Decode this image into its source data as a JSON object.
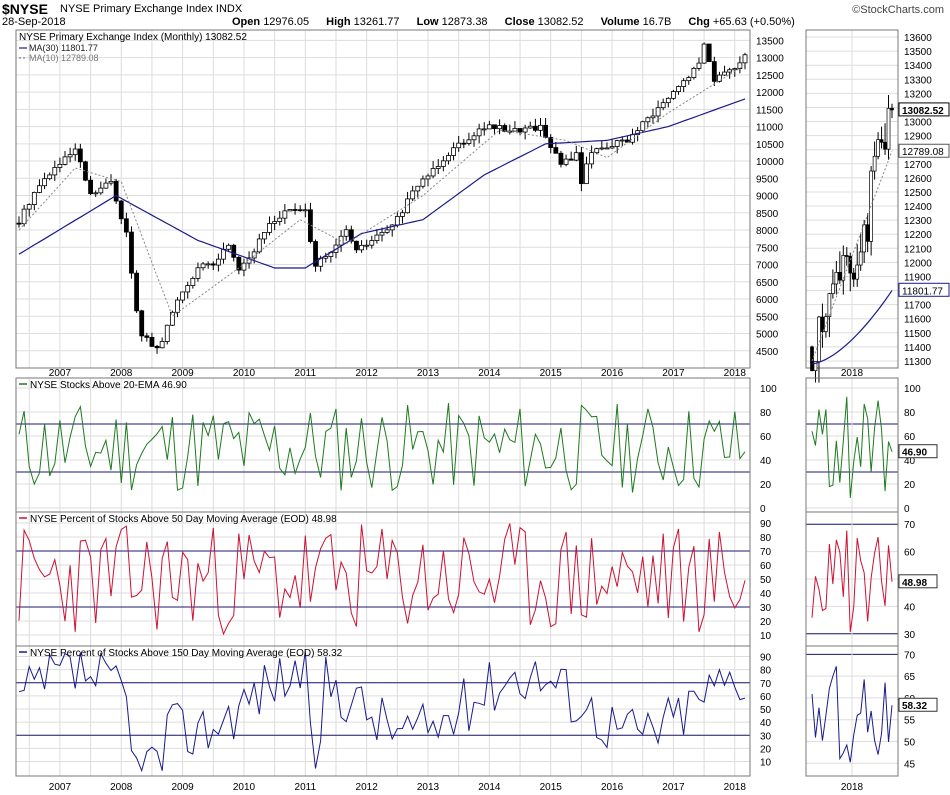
{
  "header": {
    "symbol": "$NYSE",
    "name": "NYSE Primary Exchange Index INDX",
    "brand": "©StockCharts.com",
    "date": "28-Sep-2018",
    "open_label": "Open",
    "open": "12976.05",
    "high_label": "High",
    "high": "13261.77",
    "low_label": "Low",
    "low": "12873.38",
    "close_label": "Close",
    "close": "13082.52",
    "volume_label": "Volume",
    "volume": "16.7B",
    "chg_label": "Chg",
    "chg": "+65.63 (+0.50%)"
  },
  "colors": {
    "candle": "#000000",
    "ma30": "#1a1a8c",
    "ma10": "#888888",
    "ema20_line": "#1e7a1e",
    "pct50_line": "#cc1133",
    "pct150_line": "#1a1a8c",
    "grid": "#dddddd",
    "reference_line": "#1a1a6e"
  },
  "chart_data": [
    {
      "type": "candlestick",
      "title": "NYSE Primary Exchange Index (Monthly) 13082.52",
      "legend": [
        {
          "label": "MA(30) 11801.77",
          "style": "solid",
          "color_key": "ma30"
        },
        {
          "label": "MA(10) 12789.08",
          "style": "dotted",
          "color_key": "ma10"
        }
      ],
      "x_tick_labels": [
        "2007",
        "2008",
        "2009",
        "2010",
        "2011",
        "2012",
        "2013",
        "2014",
        "2015",
        "2016",
        "2017",
        "2018"
      ],
      "y_tick_labels": [
        "4500",
        "5000",
        "5500",
        "6000",
        "6500",
        "7000",
        "7500",
        "8000",
        "8500",
        "9000",
        "9500",
        "10000",
        "10500",
        "11000",
        "11500",
        "12000",
        "12500",
        "13000",
        "13500"
      ],
      "ylim": [
        4000,
        13800
      ],
      "anchors": [
        [
          "2006-11",
          8200
        ],
        [
          "2006-12",
          8550
        ],
        [
          "2007-02",
          9100
        ],
        [
          "2007-05",
          9650
        ],
        [
          "2007-10",
          10300
        ],
        [
          "2007-11",
          9900
        ],
        [
          "2008-01",
          9000
        ],
        [
          "2008-05",
          9400
        ],
        [
          "2008-08",
          7900
        ],
        [
          "2008-10",
          5600
        ],
        [
          "2008-11",
          5000
        ],
        [
          "2009-02",
          4500
        ],
        [
          "2009-03",
          4800
        ],
        [
          "2009-06",
          6000
        ],
        [
          "2009-10",
          6900
        ],
        [
          "2010-01",
          7000
        ],
        [
          "2010-04",
          7600
        ],
        [
          "2010-06",
          6900
        ],
        [
          "2010-09",
          7400
        ],
        [
          "2010-12",
          8200
        ],
        [
          "2011-04",
          8600
        ],
        [
          "2011-07",
          8500
        ],
        [
          "2011-09",
          7000
        ],
        [
          "2011-12",
          7300
        ],
        [
          "2012-03",
          8000
        ],
        [
          "2012-05",
          7400
        ],
        [
          "2012-12",
          8100
        ],
        [
          "2013-05",
          9300
        ],
        [
          "2013-12",
          10400
        ],
        [
          "2014-06",
          11000
        ],
        [
          "2014-12",
          10900
        ],
        [
          "2015-05",
          11000
        ],
        [
          "2015-09",
          9900
        ],
        [
          "2015-12",
          10200
        ],
        [
          "2016-01",
          9400
        ],
        [
          "2016-03",
          10300
        ],
        [
          "2016-06",
          10450
        ],
        [
          "2016-10",
          10600
        ],
        [
          "2017-06",
          11800
        ],
        [
          "2017-12",
          12800
        ],
        [
          "2018-01",
          13400
        ],
        [
          "2018-03",
          12400
        ],
        [
          "2018-06",
          12600
        ],
        [
          "2018-09",
          13082.52
        ]
      ],
      "ma30_anchors": [
        [
          "2006-11",
          7300
        ],
        [
          "2008-06",
          9000
        ],
        [
          "2009-10",
          7700
        ],
        [
          "2011-01",
          6900
        ],
        [
          "2011-07",
          6900
        ],
        [
          "2012-06",
          7900
        ],
        [
          "2013-06",
          8300
        ],
        [
          "2014-06",
          9600
        ],
        [
          "2015-06",
          10500
        ],
        [
          "2016-06",
          10600
        ],
        [
          "2017-06",
          11000
        ],
        [
          "2018-09",
          11801.77
        ]
      ],
      "ma10_anchors": [
        [
          "2006-11",
          8000
        ],
        [
          "2007-10",
          9800
        ],
        [
          "2008-07",
          9400
        ],
        [
          "2009-05",
          5500
        ],
        [
          "2010-06",
          6900
        ],
        [
          "2011-06",
          8300
        ],
        [
          "2012-03",
          7600
        ],
        [
          "2013-06",
          9000
        ],
        [
          "2014-09",
          10900
        ],
        [
          "2015-10",
          10600
        ],
        [
          "2016-06",
          10100
        ],
        [
          "2017-06",
          11400
        ],
        [
          "2018-09",
          12789.08
        ]
      ],
      "inset": {
        "x_tick_labels": [
          "2018"
        ],
        "y_tick_labels": [
          "11300",
          "11400",
          "11500",
          "11600",
          "11700",
          "11800",
          "11900",
          "12000",
          "12100",
          "12200",
          "12300",
          "12400",
          "12500",
          "12600",
          "12700",
          "12800",
          "12900",
          "13000",
          "13100",
          "13200",
          "13300",
          "13400",
          "13500",
          "13600"
        ],
        "ylim": [
          11250,
          13650
        ],
        "value_tags": [
          "13082.52",
          "12789.08",
          "11801.77"
        ]
      }
    },
    {
      "type": "line",
      "title": "NYSE Stocks Above 20-EMA 46.90",
      "y_tick_labels": [
        "0",
        "20",
        "40",
        "60",
        "80",
        "100"
      ],
      "ylim": [
        0,
        105
      ],
      "reference_lines": [
        30,
        70
      ],
      "last_value": "46.90",
      "seed": 11
    },
    {
      "type": "line",
      "title": "NYSE Percent of Stocks Above 50 Day Moving Average (EOD) 48.98",
      "y_tick_labels": [
        "10",
        "20",
        "30",
        "40",
        "50",
        "60",
        "70",
        "80",
        "90"
      ],
      "ylim": [
        5,
        95
      ],
      "reference_lines": [
        30,
        70
      ],
      "last_value": "48.98",
      "inset": {
        "y_tick_labels": [
          "30",
          "40",
          "50",
          "60",
          "70"
        ],
        "ylim": [
          27,
          73
        ],
        "value_tag": "48.98"
      },
      "seed": 23
    },
    {
      "type": "line",
      "title": "NYSE Percent of Stocks Above 150 Day Moving Average (EOD) 58.32",
      "y_tick_labels": [
        "10",
        "20",
        "30",
        "40",
        "50",
        "60",
        "70",
        "80",
        "90"
      ],
      "ylim": [
        2,
        95
      ],
      "reference_lines": [
        30,
        70
      ],
      "last_value": "58.32",
      "inset": {
        "y_tick_labels": [
          "45",
          "50",
          "55",
          "60",
          "65",
          "70"
        ],
        "ylim": [
          43,
          71
        ],
        "value_tag": "58.32"
      },
      "seed": 37
    }
  ]
}
